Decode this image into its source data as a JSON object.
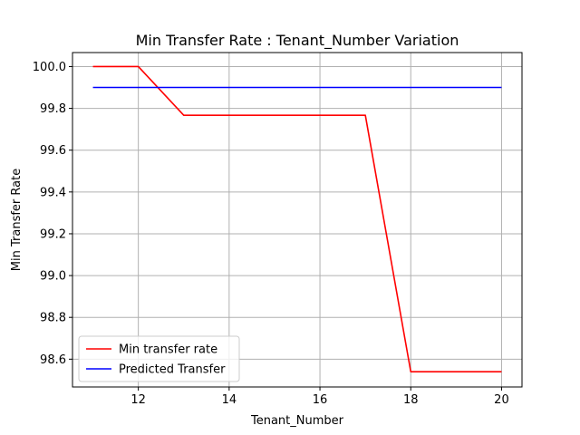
{
  "chart_data": {
    "type": "line",
    "title": "Min Transfer Rate : Tenant_Number Variation",
    "xlabel": "Tenant_Number",
    "ylabel": "Min Transfer Rate",
    "xlim": [
      10.55,
      20.45
    ],
    "ylim": [
      98.467,
      100.067
    ],
    "xticks": [
      12,
      14,
      16,
      18,
      20
    ],
    "xtick_labels": [
      "12",
      "14",
      "16",
      "18",
      "20"
    ],
    "yticks": [
      98.6,
      98.8,
      99.0,
      99.2,
      99.4,
      99.6,
      99.8,
      100.0
    ],
    "ytick_labels": [
      "98.6",
      "98.8",
      "99.0",
      "99.2",
      "99.4",
      "99.6",
      "99.8",
      "100.0"
    ],
    "grid": true,
    "legend_position": "lower-left",
    "series": [
      {
        "name": "Min transfer rate",
        "color": "#ff0000",
        "x": [
          11,
          12,
          13,
          14,
          15,
          16,
          17,
          18,
          19,
          20
        ],
        "y": [
          100.0,
          100.0,
          99.767,
          99.767,
          99.767,
          99.767,
          99.767,
          98.54,
          98.54,
          98.54
        ]
      },
      {
        "name": "Predicted Transfer",
        "color": "#0000ff",
        "x": [
          11,
          12,
          13,
          14,
          15,
          16,
          17,
          18,
          19,
          20
        ],
        "y": [
          99.9,
          99.9,
          99.9,
          99.9,
          99.9,
          99.9,
          99.9,
          99.9,
          99.9,
          99.9
        ]
      }
    ]
  }
}
